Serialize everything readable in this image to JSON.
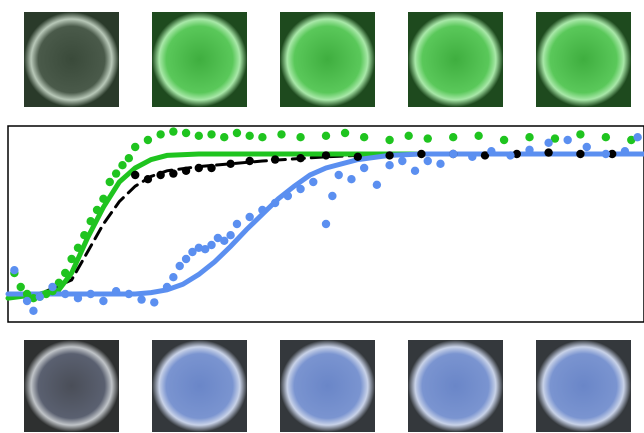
{
  "chart_data": {
    "type": "scatter",
    "xlim": [
      0,
      100
    ],
    "ylim": [
      -0.2,
      1.2
    ],
    "series": [
      {
        "kind": "line",
        "dash": true,
        "color": "#000000",
        "x": [
          0,
          5,
          10,
          12.5,
          15,
          17.5,
          20,
          22.5,
          25,
          30,
          40,
          50,
          60,
          70,
          80,
          90,
          100
        ],
        "values": [
          0.0,
          0.0,
          0.1,
          0.3,
          0.5,
          0.66,
          0.77,
          0.84,
          0.88,
          0.91,
          0.95,
          0.98,
          1.0,
          1.0,
          1.0,
          1.0,
          1.0
        ]
      },
      {
        "kind": "line",
        "dash": false,
        "color": "#1fc41f",
        "x": [
          0,
          5,
          8,
          10,
          12.5,
          15,
          17.5,
          20,
          22.5,
          25,
          30,
          40,
          50,
          60,
          70,
          80,
          90,
          100
        ],
        "values": [
          -0.03,
          0.0,
          0.03,
          0.15,
          0.4,
          0.62,
          0.8,
          0.9,
          0.96,
          0.99,
          1.0,
          1.0,
          1.0,
          1.0,
          1.0,
          1.0,
          1.0,
          1.0
        ]
      },
      {
        "kind": "line",
        "dash": false,
        "color": "#5b8ff0",
        "x": [
          0,
          10,
          20,
          22.5,
          25,
          27.5,
          30,
          32.5,
          35,
          37.5,
          40,
          42.5,
          45,
          47.5,
          50,
          55,
          60,
          65,
          80,
          100
        ],
        "values": [
          0.0,
          0.0,
          0.0,
          0.01,
          0.03,
          0.07,
          0.14,
          0.23,
          0.34,
          0.46,
          0.57,
          0.68,
          0.77,
          0.85,
          0.9,
          0.96,
          0.99,
          1.0,
          1.0,
          1.0
        ]
      },
      {
        "kind": "points",
        "color": "#000000",
        "x": [
          20,
          22,
          24,
          26,
          28,
          30,
          32,
          35,
          38,
          42,
          46,
          50,
          55,
          60,
          65,
          70,
          75,
          80,
          85,
          90,
          95
        ],
        "values": [
          0.85,
          0.82,
          0.85,
          0.86,
          0.88,
          0.9,
          0.9,
          0.93,
          0.95,
          0.96,
          0.97,
          0.99,
          0.98,
          0.99,
          1.0,
          1.0,
          0.99,
          1.0,
          1.01,
          1.0,
          1.0
        ]
      },
      {
        "kind": "points",
        "color": "#1fc41f",
        "x": [
          1,
          2,
          3,
          4,
          5,
          6,
          7,
          8,
          9,
          10,
          11,
          12,
          13,
          14,
          15,
          16,
          17,
          18,
          19,
          20,
          22,
          24,
          26,
          28,
          30,
          32,
          34,
          36,
          38,
          40,
          43,
          46,
          50,
          53,
          56,
          60,
          63,
          66,
          70,
          74,
          78,
          82,
          86,
          90,
          94,
          98
        ],
        "values": [
          0.15,
          0.05,
          0.0,
          -0.03,
          -0.02,
          0.0,
          0.02,
          0.08,
          0.15,
          0.25,
          0.33,
          0.42,
          0.52,
          0.6,
          0.68,
          0.8,
          0.86,
          0.92,
          0.97,
          1.05,
          1.1,
          1.14,
          1.16,
          1.15,
          1.13,
          1.14,
          1.12,
          1.15,
          1.13,
          1.12,
          1.14,
          1.12,
          1.13,
          1.15,
          1.12,
          1.1,
          1.13,
          1.11,
          1.12,
          1.13,
          1.1,
          1.12,
          1.11,
          1.14,
          1.12,
          1.1
        ]
      },
      {
        "kind": "points",
        "color": "#5b8ff0",
        "x": [
          1,
          3,
          4,
          5,
          7,
          9,
          11,
          13,
          15,
          17,
          19,
          21,
          23,
          25,
          26,
          27,
          28,
          29,
          30,
          31,
          32,
          33,
          34,
          35,
          36,
          38,
          40,
          42,
          44,
          46,
          48,
          50,
          51,
          52,
          54,
          56,
          58,
          60,
          62,
          64,
          66,
          68,
          70,
          73,
          76,
          79,
          82,
          85,
          88,
          91,
          94,
          97,
          99
        ],
        "values": [
          0.17,
          -0.05,
          -0.12,
          -0.02,
          0.05,
          0.0,
          -0.03,
          0.0,
          -0.05,
          0.02,
          0.0,
          -0.04,
          -0.06,
          0.05,
          0.12,
          0.2,
          0.25,
          0.3,
          0.33,
          0.32,
          0.35,
          0.4,
          0.38,
          0.42,
          0.5,
          0.55,
          0.6,
          0.65,
          0.7,
          0.75,
          0.8,
          0.5,
          0.7,
          0.85,
          0.82,
          0.9,
          0.78,
          0.92,
          0.95,
          0.88,
          0.95,
          0.93,
          1.0,
          0.98,
          1.02,
          0.99,
          1.03,
          1.08,
          1.1,
          1.05,
          1.0,
          1.02,
          1.12
        ]
      }
    ]
  }
}
